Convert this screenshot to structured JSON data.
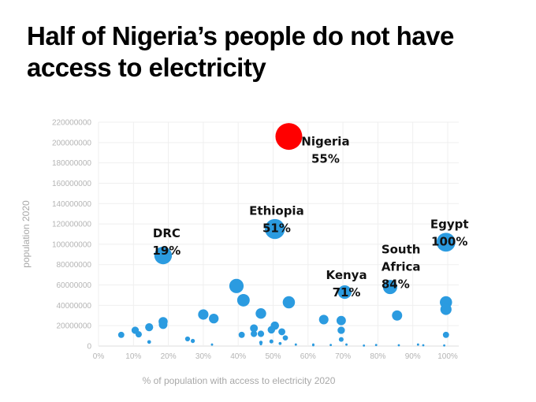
{
  "title": "Half of Nigeria’s people do not have access to electricity",
  "chart_data": {
    "type": "scatter",
    "xlabel": "% of population with access to electricity 2020",
    "ylabel": "population 2020",
    "xlim": [
      0,
      100
    ],
    "ylim": [
      0,
      220000000
    ],
    "x_ticks": [
      "0%",
      "10%",
      "20%",
      "30%",
      "40%",
      "50%",
      "60%",
      "70%",
      "80%",
      "90%",
      "100%"
    ],
    "y_ticks": [
      "0",
      "20000000",
      "40000000",
      "60000000",
      "80000000",
      "100000000",
      "120000000",
      "140000000",
      "160000000",
      "180000000",
      "200000000",
      "220000000"
    ],
    "grid": true,
    "colors": {
      "default": "#2b9be0",
      "highlight": "#ff0000"
    },
    "points": [
      {
        "x": 54.5,
        "y": 206000000,
        "highlight": true
      },
      {
        "x": 50.5,
        "y": 115000000
      },
      {
        "x": 18.5,
        "y": 89000000
      },
      {
        "x": 99.5,
        "y": 102000000
      },
      {
        "x": 39.5,
        "y": 59000000
      },
      {
        "x": 83.5,
        "y": 58000000
      },
      {
        "x": 70.5,
        "y": 53000000
      },
      {
        "x": 41.5,
        "y": 45000000
      },
      {
        "x": 54.5,
        "y": 43000000
      },
      {
        "x": 99.5,
        "y": 43000000
      },
      {
        "x": 99.5,
        "y": 36000000
      },
      {
        "x": 46.5,
        "y": 32000000
      },
      {
        "x": 30.0,
        "y": 31000000
      },
      {
        "x": 85.5,
        "y": 30000000
      },
      {
        "x": 33.0,
        "y": 27000000
      },
      {
        "x": 64.5,
        "y": 26000000
      },
      {
        "x": 69.5,
        "y": 25000000
      },
      {
        "x": 18.5,
        "y": 24000000
      },
      {
        "x": 18.5,
        "y": 21000000
      },
      {
        "x": 50.5,
        "y": 20000000
      },
      {
        "x": 14.5,
        "y": 18500000
      },
      {
        "x": 44.5,
        "y": 17500000
      },
      {
        "x": 49.5,
        "y": 16000000
      },
      {
        "x": 10.5,
        "y": 15500000
      },
      {
        "x": 69.5,
        "y": 15500000
      },
      {
        "x": 52.5,
        "y": 14000000
      },
      {
        "x": 44.5,
        "y": 12000000
      },
      {
        "x": 46.5,
        "y": 12000000
      },
      {
        "x": 11.5,
        "y": 11500000
      },
      {
        "x": 6.5,
        "y": 11000000
      },
      {
        "x": 41.0,
        "y": 11000000
      },
      {
        "x": 99.5,
        "y": 11000000
      },
      {
        "x": 53.5,
        "y": 8000000
      },
      {
        "x": 25.5,
        "y": 7000000
      },
      {
        "x": 69.5,
        "y": 6500000
      },
      {
        "x": 27.0,
        "y": 5000000
      },
      {
        "x": 49.5,
        "y": 4500000
      },
      {
        "x": 14.5,
        "y": 4000000
      },
      {
        "x": 46.5,
        "y": 3500000
      },
      {
        "x": 52.0,
        "y": 2500000
      },
      {
        "x": 46.5,
        "y": 2000000
      },
      {
        "x": 32.5,
        "y": 1500000
      },
      {
        "x": 56.5,
        "y": 1500000
      },
      {
        "x": 61.5,
        "y": 1500000
      },
      {
        "x": 66.5,
        "y": 1000000
      },
      {
        "x": 71.0,
        "y": 1500000
      },
      {
        "x": 79.5,
        "y": 1000000
      },
      {
        "x": 86.0,
        "y": 800000
      },
      {
        "x": 91.5,
        "y": 1500000
      },
      {
        "x": 93.0,
        "y": 800000
      },
      {
        "x": 76.0,
        "y": 500000
      },
      {
        "x": 61.5,
        "y": 800000
      },
      {
        "x": 99.0,
        "y": 600000
      }
    ],
    "annotations": [
      {
        "lines": [
          "Nigeria",
          "55%"
        ],
        "x": 65.0,
        "y": 197000000,
        "align": "middle"
      },
      {
        "lines": [
          "Ethiopia",
          "51%"
        ],
        "x": 51.0,
        "y": 129000000,
        "align": "middle"
      },
      {
        "lines": [
          "DRC",
          "19%"
        ],
        "x": 19.5,
        "y": 107000000,
        "align": "middle"
      },
      {
        "lines": [
          "Egypt",
          "100%"
        ],
        "x": 100.5,
        "y": 116000000,
        "align": "middle"
      },
      {
        "lines": [
          "South",
          "Africa",
          "84%"
        ],
        "x": 81.0,
        "y": 91000000,
        "align": "start"
      },
      {
        "lines": [
          "Kenya",
          "71%"
        ],
        "x": 71.0,
        "y": 66000000,
        "align": "middle"
      }
    ]
  }
}
